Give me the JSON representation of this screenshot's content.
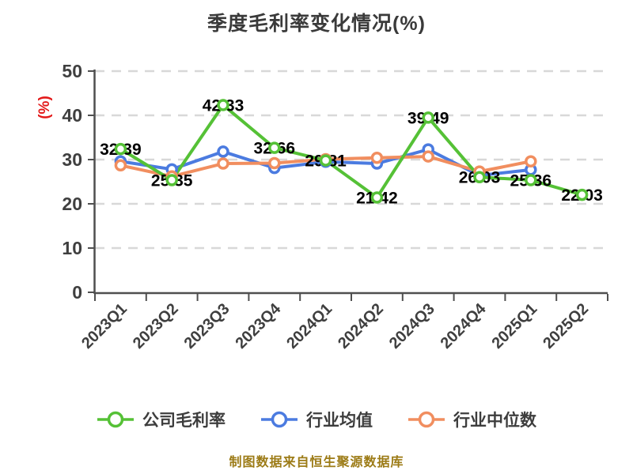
{
  "chart_data": {
    "type": "line",
    "title": "季度毛利率变化情况(%)",
    "ylabel": "(%)",
    "xlabel": "",
    "categories": [
      "2023Q1",
      "2023Q2",
      "2023Q3",
      "2023Q4",
      "2024Q1",
      "2024Q2",
      "2024Q3",
      "2024Q4",
      "2025Q1",
      "2025Q2"
    ],
    "series": [
      {
        "name": "公司毛利率",
        "color": "#55c136",
        "show_labels": true,
        "values": [
          32.39,
          25.35,
          42.33,
          32.66,
          29.81,
          21.42,
          39.49,
          26.03,
          25.36,
          22.03
        ]
      },
      {
        "name": "行业均值",
        "color": "#4b7be0",
        "show_labels": false,
        "values": [
          29.6,
          27.8,
          31.8,
          28.1,
          29.5,
          29.1,
          32.3,
          26.4,
          27.7,
          null
        ]
      },
      {
        "name": "行业中位数",
        "color": "#f18e5f",
        "show_labels": false,
        "values": [
          28.7,
          26.2,
          29.1,
          29.2,
          30.1,
          30.4,
          30.7,
          27.3,
          29.6,
          null
        ]
      }
    ],
    "ylim": [
      0,
      50
    ],
    "yticks": [
      0,
      10,
      20,
      30,
      40,
      50
    ],
    "grid": "horizontal-dashed",
    "legend_position": "bottom",
    "marker": "circle-white-fill",
    "label_decimals": 2
  },
  "footer": {
    "text": "制图数据来自恒生聚源数据库"
  },
  "colors": {
    "title_text": "#3a3a3a",
    "axis_text": "#3f3f3f",
    "axis_line": "#4f4f4f",
    "gridline": "#d8d8d8",
    "ylabel_text": "#e31919",
    "data_label_text": "#000000",
    "footer_text": "#9c7b16",
    "background": "#ffffff"
  }
}
